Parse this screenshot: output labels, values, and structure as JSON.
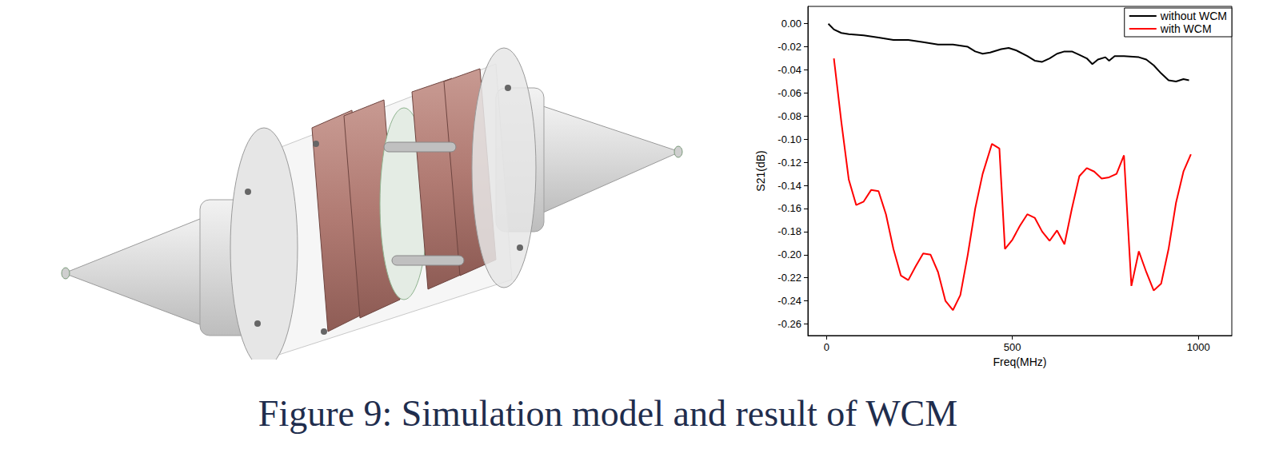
{
  "chart_data": {
    "type": "line",
    "x_label": "Freq(MHz)",
    "y_label": "S21(dB)",
    "xlim": [
      -50,
      1090
    ],
    "xticks": [
      0,
      500,
      1000
    ],
    "ylim": [
      -0.27,
      0.015
    ],
    "yticks": [
      {
        "value": 0,
        "label": "0.00"
      },
      {
        "value": -0.02,
        "label": "-0.02"
      },
      {
        "value": -0.04,
        "label": "-0.04"
      },
      {
        "value": -0.06,
        "label": "-0.06"
      },
      {
        "value": -0.08,
        "label": "-0.08"
      },
      {
        "value": -0.1,
        "label": "-0.10"
      },
      {
        "value": -0.12,
        "label": "-0.12"
      },
      {
        "value": -0.14,
        "label": "-0.14"
      },
      {
        "value": -0.16,
        "label": "-0.16"
      },
      {
        "value": -0.18,
        "label": "-0.18"
      },
      {
        "value": -0.2,
        "label": "-0.20"
      },
      {
        "value": -0.22,
        "label": "-0.22"
      },
      {
        "value": -0.24,
        "label": "-0.24"
      },
      {
        "value": -0.26,
        "label": "-0.26"
      }
    ],
    "grid": false,
    "legend": "upper right",
    "series": [
      {
        "name": "without WCM",
        "color": "#000000",
        "x": [
          5,
          20,
          40,
          60,
          100,
          140,
          180,
          220,
          260,
          300,
          340,
          380,
          400,
          420,
          440,
          470,
          490,
          510,
          540,
          560,
          580,
          600,
          620,
          640,
          660,
          680,
          700,
          715,
          730,
          750,
          760,
          775,
          800,
          840,
          860,
          880,
          900,
          920,
          940,
          960,
          975
        ],
        "values": [
          0.0,
          -0.005,
          -0.008,
          -0.009,
          -0.01,
          -0.012,
          -0.014,
          -0.014,
          -0.016,
          -0.018,
          -0.018,
          -0.02,
          -0.024,
          -0.026,
          -0.025,
          -0.022,
          -0.021,
          -0.023,
          -0.028,
          -0.032,
          -0.033,
          -0.03,
          -0.026,
          -0.024,
          -0.024,
          -0.027,
          -0.03,
          -0.035,
          -0.031,
          -0.029,
          -0.032,
          -0.028,
          -0.028,
          -0.029,
          -0.031,
          -0.036,
          -0.043,
          -0.049,
          -0.05,
          -0.048,
          -0.049
        ]
      },
      {
        "name": "with WCM",
        "color": "#ff0000",
        "x": [
          20,
          40,
          60,
          80,
          100,
          120,
          140,
          160,
          180,
          200,
          220,
          240,
          260,
          280,
          300,
          320,
          340,
          360,
          380,
          400,
          420,
          445,
          465,
          480,
          500,
          520,
          540,
          560,
          580,
          600,
          620,
          640,
          660,
          680,
          700,
          720,
          740,
          760,
          780,
          800,
          820,
          840,
          860,
          880,
          900,
          920,
          940,
          960,
          980
        ],
        "values": [
          -0.03,
          -0.085,
          -0.135,
          -0.157,
          -0.154,
          -0.144,
          -0.145,
          -0.165,
          -0.195,
          -0.218,
          -0.222,
          -0.21,
          -0.199,
          -0.2,
          -0.215,
          -0.24,
          -0.248,
          -0.235,
          -0.2,
          -0.16,
          -0.13,
          -0.104,
          -0.108,
          -0.195,
          -0.187,
          -0.175,
          -0.165,
          -0.168,
          -0.18,
          -0.188,
          -0.179,
          -0.191,
          -0.16,
          -0.132,
          -0.125,
          -0.128,
          -0.134,
          -0.133,
          -0.13,
          -0.114,
          -0.227,
          -0.197,
          -0.215,
          -0.231,
          -0.225,
          -0.195,
          -0.155,
          -0.128,
          -0.113
        ]
      }
    ]
  },
  "caption": "Figure 9: Simulation model and result of WCM"
}
